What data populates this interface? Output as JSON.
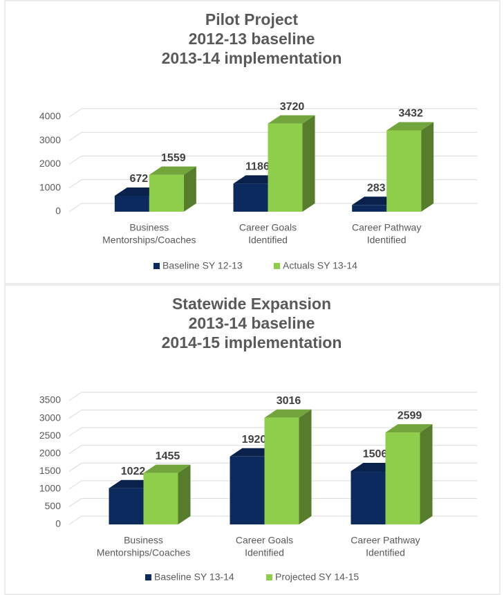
{
  "chart_data": [
    {
      "type": "bar",
      "title": [
        "Pilot Project",
        "2012-13 baseline",
        "2013-14 implementation"
      ],
      "categories": [
        [
          "Business",
          "Mentorships/Coaches"
        ],
        [
          "Career  Goals",
          "Identified"
        ],
        [
          "Career Pathway",
          "Identified"
        ]
      ],
      "series": [
        {
          "name": "Baseline SY 12-13",
          "color": "#0d2a5e",
          "values": [
            672,
            1186,
            283
          ]
        },
        {
          "name": "Actuals SY 13-14",
          "color": "#8fce4a",
          "values": [
            1559,
            3720,
            3432
          ]
        }
      ],
      "ylim": [
        0,
        4000
      ],
      "yticks": [
        0,
        1000,
        2000,
        3000,
        4000
      ],
      "grid": true,
      "legend": "bottom"
    },
    {
      "type": "bar",
      "title": [
        "Statewide Expansion",
        "2013-14 baseline",
        "2014-15 implementation"
      ],
      "categories": [
        [
          "Business",
          "Mentorships/Coaches"
        ],
        [
          "Career  Goals",
          "Identified"
        ],
        [
          "Career Pathway",
          "Identified"
        ]
      ],
      "series": [
        {
          "name": "Baseline SY 13-14",
          "color": "#0d2a5e",
          "values": [
            1022,
            1920,
            1506
          ]
        },
        {
          "name": "Projected  SY 14-15",
          "color": "#8fce4a",
          "values": [
            1455,
            3016,
            2599
          ]
        }
      ],
      "ylim": [
        0,
        3500
      ],
      "yticks": [
        0,
        500,
        1000,
        1500,
        2000,
        2500,
        3000,
        3500
      ],
      "grid": true,
      "legend": "bottom"
    }
  ]
}
